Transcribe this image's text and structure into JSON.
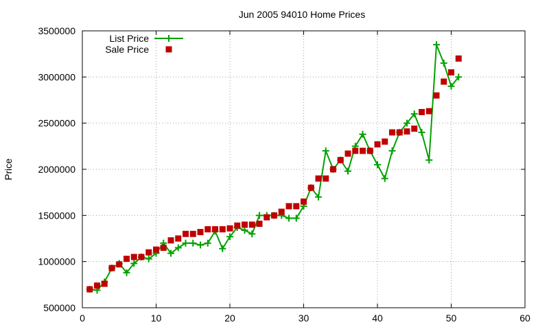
{
  "chart_data": {
    "type": "line",
    "title": "Jun 2005 94010 Home Prices",
    "xlabel": "",
    "ylabel": "Price",
    "xlim": [
      0,
      60
    ],
    "ylim": [
      500000,
      3500000
    ],
    "xticks": [
      0,
      10,
      20,
      30,
      40,
      50,
      60
    ],
    "yticks": [
      500000,
      1000000,
      1500000,
      2000000,
      2500000,
      3000000,
      3500000
    ],
    "xtick_labels": [
      "0",
      "10",
      "20",
      "30",
      "40",
      "50",
      "60"
    ],
    "ytick_labels": [
      "500000",
      "1000000",
      "1500000",
      "2000000",
      "2500000",
      "3000000",
      "3500000"
    ],
    "grid": true,
    "legend_position": "top-left",
    "series": [
      {
        "name": "List Price",
        "style": "line-plus",
        "color": "#00a000",
        "x": [
          1,
          2,
          3,
          4,
          5,
          6,
          7,
          8,
          9,
          10,
          11,
          12,
          13,
          14,
          15,
          16,
          17,
          18,
          19,
          20,
          21,
          22,
          23,
          24,
          25,
          26,
          27,
          28,
          29,
          30,
          31,
          32,
          33,
          34,
          35,
          36,
          37,
          38,
          39,
          40,
          41,
          42,
          43,
          44,
          45,
          46,
          47,
          48,
          49,
          50,
          51
        ],
        "y": [
          700000,
          690000,
          780000,
          930000,
          980000,
          880000,
          980000,
          1050000,
          1030000,
          1090000,
          1200000,
          1090000,
          1150000,
          1200000,
          1200000,
          1180000,
          1200000,
          1330000,
          1140000,
          1270000,
          1370000,
          1340000,
          1300000,
          1500000,
          1500000,
          1500000,
          1500000,
          1470000,
          1470000,
          1600000,
          1800000,
          1700000,
          2200000,
          2000000,
          2100000,
          1980000,
          2250000,
          2380000,
          2200000,
          2050000,
          1900000,
          2200000,
          2400000,
          2500000,
          2600000,
          2400000,
          2100000,
          3350000,
          3150000,
          2900000,
          3000000
        ]
      },
      {
        "name": "Sale Price",
        "style": "square",
        "color": "#c00000",
        "x": [
          1,
          2,
          3,
          4,
          5,
          6,
          7,
          8,
          9,
          10,
          11,
          12,
          13,
          14,
          15,
          16,
          17,
          18,
          19,
          20,
          21,
          22,
          23,
          24,
          25,
          26,
          27,
          28,
          29,
          30,
          31,
          32,
          33,
          34,
          35,
          36,
          37,
          38,
          39,
          40,
          41,
          42,
          43,
          44,
          45,
          46,
          47,
          48,
          49,
          50,
          51
        ],
        "y": [
          700000,
          740000,
          760000,
          930000,
          970000,
          1030000,
          1050000,
          1050000,
          1100000,
          1130000,
          1150000,
          1230000,
          1250000,
          1300000,
          1300000,
          1320000,
          1350000,
          1350000,
          1350000,
          1360000,
          1390000,
          1400000,
          1400000,
          1410000,
          1480000,
          1500000,
          1540000,
          1600000,
          1600000,
          1650000,
          1800000,
          1900000,
          1900000,
          2000000,
          2100000,
          2170000,
          2200000,
          2200000,
          2200000,
          2270000,
          2300000,
          2400000,
          2400000,
          2410000,
          2440000,
          2620000,
          2630000,
          2800000,
          2950000,
          3050000,
          3200000
        ]
      }
    ]
  }
}
